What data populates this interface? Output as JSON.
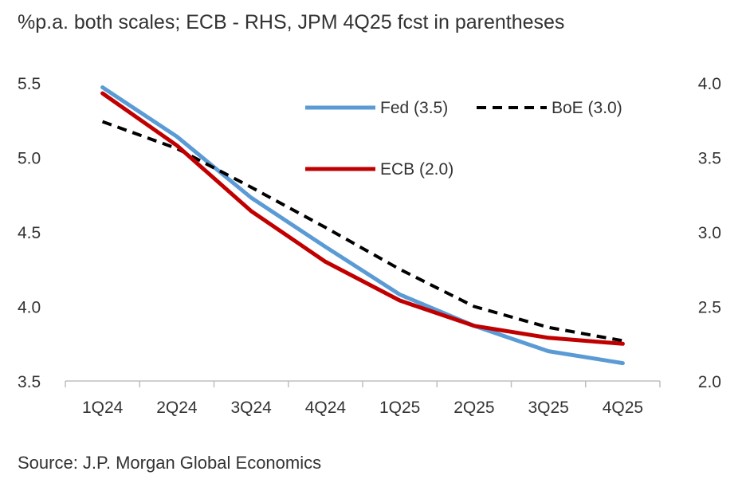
{
  "chart_data": {
    "type": "line",
    "title": "%p.a. both scales; ECB - RHS, JPM 4Q25 fcst in parentheses",
    "source": "Source: J.P. Morgan Global Economics",
    "categories": [
      "1Q24",
      "2Q24",
      "3Q24",
      "4Q24",
      "1Q25",
      "2Q25",
      "3Q25",
      "4Q25"
    ],
    "left_axis": {
      "ylim": [
        3.5,
        5.5
      ],
      "ticks": [
        "5.5",
        "5.0",
        "4.5",
        "4.0",
        "3.5"
      ]
    },
    "right_axis": {
      "ylim": [
        2.0,
        4.0
      ],
      "ticks": [
        "4.0",
        "3.5",
        "3.0",
        "2.5",
        "2.0"
      ]
    },
    "series": [
      {
        "name": "Fed",
        "legend": "Fed (3.5)",
        "axis": "left",
        "color": "#5b9bd5",
        "style": "solid",
        "values": [
          5.47,
          5.14,
          4.73,
          4.4,
          4.08,
          3.87,
          3.7,
          3.62
        ]
      },
      {
        "name": "BoE",
        "legend": "BoE (3.0)",
        "axis": "left",
        "color": "#000000",
        "style": "dashed",
        "values": [
          5.24,
          5.06,
          4.8,
          4.53,
          4.25,
          4.0,
          3.86,
          3.77
        ]
      },
      {
        "name": "ECB",
        "legend": "ECB (2.0)",
        "axis": "right",
        "color": "#c00000",
        "style": "solid",
        "values": [
          3.93,
          3.58,
          3.14,
          2.8,
          2.54,
          2.37,
          2.29,
          2.25
        ]
      }
    ]
  }
}
